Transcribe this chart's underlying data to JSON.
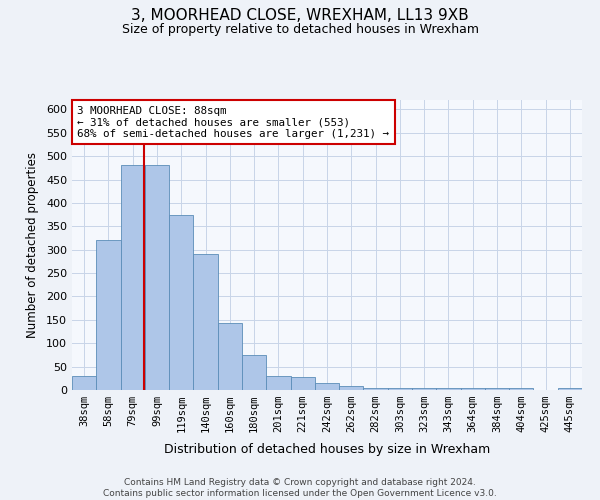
{
  "title": "3, MOORHEAD CLOSE, WREXHAM, LL13 9XB",
  "subtitle": "Size of property relative to detached houses in Wrexham",
  "xlabel": "Distribution of detached houses by size in Wrexham",
  "ylabel": "Number of detached properties",
  "categories": [
    "38sqm",
    "58sqm",
    "79sqm",
    "99sqm",
    "119sqm",
    "140sqm",
    "160sqm",
    "180sqm",
    "201sqm",
    "221sqm",
    "242sqm",
    "262sqm",
    "282sqm",
    "303sqm",
    "323sqm",
    "343sqm",
    "364sqm",
    "384sqm",
    "404sqm",
    "425sqm",
    "445sqm"
  ],
  "values": [
    30,
    320,
    480,
    480,
    375,
    290,
    143,
    75,
    30,
    27,
    15,
    8,
    5,
    4,
    4,
    4,
    4,
    4,
    4,
    1,
    4
  ],
  "bar_color": "#aec6e8",
  "bar_edge_color": "#5b8db8",
  "property_line_color": "#cc0000",
  "annotation_text": "3 MOORHEAD CLOSE: 88sqm\n← 31% of detached houses are smaller (553)\n68% of semi-detached houses are larger (1,231) →",
  "annotation_box_color": "#ffffff",
  "annotation_box_edge": "#cc0000",
  "ylim": [
    0,
    620
  ],
  "yticks": [
    0,
    50,
    100,
    150,
    200,
    250,
    300,
    350,
    400,
    450,
    500,
    550,
    600
  ],
  "footer": "Contains HM Land Registry data © Crown copyright and database right 2024.\nContains public sector information licensed under the Open Government Licence v3.0.",
  "bg_color": "#eef2f8",
  "plot_bg_color": "#f5f8fd",
  "grid_color": "#c8d4e8"
}
